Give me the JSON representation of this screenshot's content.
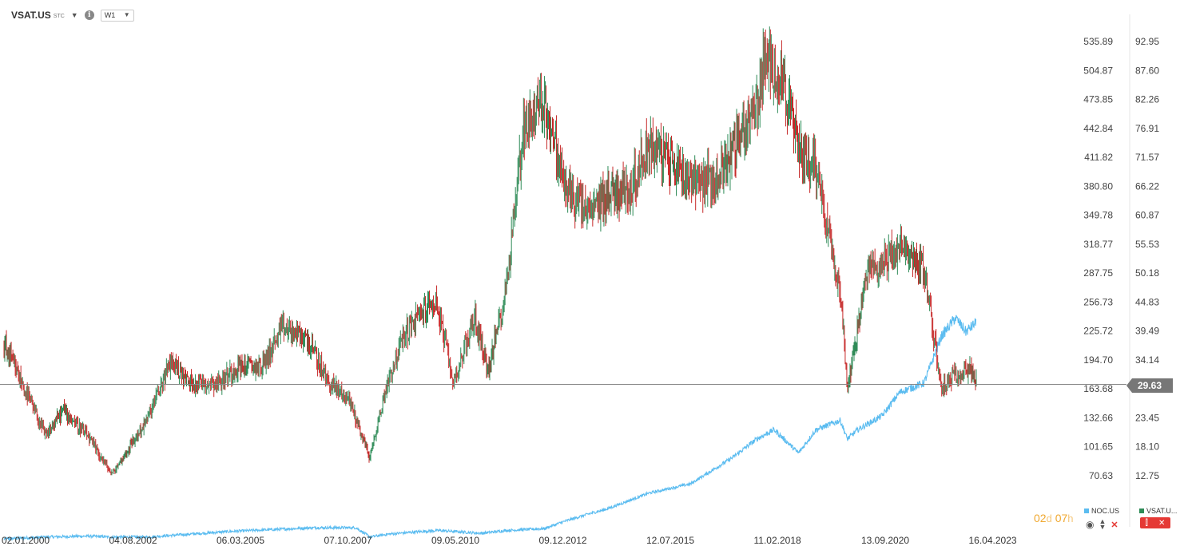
{
  "toolbar": {
    "symbol": "VSAT.US",
    "symbol_sub": "STC",
    "timeframe": "W1",
    "caret_icon": "caret-down-icon",
    "info_icon": "info-icon"
  },
  "chart_data": {
    "type": "candlestick+line",
    "series": [
      {
        "name": "VSAT.US",
        "kind": "candlestick",
        "axis": "right-inner",
        "color_up": "#2e8b57",
        "color_down": "#c62828",
        "x": [
          "2000-01",
          "2000-06",
          "2001-01",
          "2001-06",
          "2002-01",
          "2002-08",
          "2003-01",
          "2003-06",
          "2004-01",
          "2004-06",
          "2005-03",
          "2005-08",
          "2006-03",
          "2006-09",
          "2007-04",
          "2007-10",
          "2008-04",
          "2008-10",
          "2009-03",
          "2009-08",
          "2010-01",
          "2010-05",
          "2010-10",
          "2011-04",
          "2011-08",
          "2012-01",
          "2012-06",
          "2012-12",
          "2013-06",
          "2014-01",
          "2014-06",
          "2015-01",
          "2015-06",
          "2015-12",
          "2016-06",
          "2017-01",
          "2017-06",
          "2018-01",
          "2018-03",
          "2018-08",
          "2019-01",
          "2019-06",
          "2020-01",
          "2020-03",
          "2020-09",
          "2021-01",
          "2021-06",
          "2022-01",
          "2022-06",
          "2023-01",
          "2023-04"
        ],
        "values": [
          37,
          30,
          20,
          25,
          20,
          13,
          18,
          23,
          34,
          30,
          30,
          33,
          33,
          40,
          38,
          30,
          27,
          16,
          30,
          39,
          43,
          45,
          30,
          42,
          32,
          47,
          77,
          82,
          66,
          61,
          65,
          66,
          74,
          71,
          68,
          67,
          73,
          81,
          89,
          87,
          73,
          70,
          47,
          29,
          51,
          52,
          55,
          51,
          29,
          33,
          30.5
        ]
      },
      {
        "name": "NOC.US",
        "kind": "line",
        "axis": "right-outer",
        "color": "#5bbcf0",
        "x": [
          "2000-01",
          "2001-01",
          "2002-01",
          "2002-08",
          "2003-06",
          "2004-06",
          "2005-06",
          "2006-06",
          "2007-06",
          "2008-06",
          "2008-10",
          "2009-03",
          "2010-01",
          "2010-06",
          "2011-06",
          "2012-01",
          "2012-12",
          "2013-06",
          "2014-01",
          "2014-06",
          "2015-06",
          "2016-06",
          "2017-06",
          "2018-01",
          "2018-06",
          "2019-01",
          "2019-06",
          "2020-01",
          "2020-03",
          "2020-06",
          "2021-01",
          "2021-06",
          "2022-01",
          "2022-06",
          "2022-10",
          "2023-01",
          "2023-04"
        ],
        "values": [
          3,
          5,
          6,
          5,
          5,
          8,
          11,
          13,
          15,
          15,
          5,
          8,
          11,
          12,
          9,
          12,
          14,
          22,
          30,
          35,
          52,
          62,
          90,
          110,
          120,
          95,
          120,
          130,
          110,
          120,
          135,
          160,
          170,
          220,
          240,
          225,
          235
        ]
      }
    ],
    "y_axis_inner": {
      "ticks": [
        535.89,
        504.87,
        473.85,
        442.84,
        411.82,
        380.8,
        349.78,
        318.77,
        287.75,
        256.73,
        225.72,
        194.7,
        163.68,
        132.66,
        101.65,
        70.63
      ],
      "tick_labels": [
        "535.89",
        "504.87",
        "473.85",
        "442.84",
        "411.82",
        "380.80",
        "349.78",
        "318.77",
        "287.75",
        "256.73",
        "225.72",
        "194.70",
        "163.68",
        "132.66",
        "101.65",
        "70.63"
      ]
    },
    "y_axis_outer": {
      "ticks": [
        92.95,
        87.6,
        82.26,
        76.91,
        71.57,
        66.22,
        60.87,
        55.53,
        50.18,
        44.83,
        39.49,
        34.14,
        28.8,
        23.45,
        18.1,
        12.75
      ],
      "tick_labels": [
        "92.95",
        "87.60",
        "82.26",
        "76.91",
        "71.57",
        "66.22",
        "60.87",
        "55.53",
        "50.18",
        "44.83",
        "39.49",
        "34.14",
        "",
        "23.45",
        "18.10",
        "12.75"
      ]
    },
    "x_tick_labels": [
      "02.01.2000",
      "04.08.2002",
      "06.03.2005",
      "07.10.2007",
      "09.05.2010",
      "09.12.2012",
      "12.07.2015",
      "11.02.2018",
      "13.09.2020",
      "16.04.2023"
    ],
    "current_price": 29.63,
    "current_price_label": "29.63",
    "grid": false
  },
  "countdown": {
    "days": "02",
    "d_unit": "d",
    "hours": "07",
    "h_unit": "h"
  },
  "legend": {
    "noc_label": "NOC.US",
    "noc_color": "#5bbcf0",
    "vsat_label": "VSAT.U...",
    "vsat_color": "#2e8b57",
    "eye_icon": "eye-icon",
    "updown_icon": "sort-icon",
    "close_icon": "close-icon",
    "candle_icon": "candlestick-icon"
  }
}
